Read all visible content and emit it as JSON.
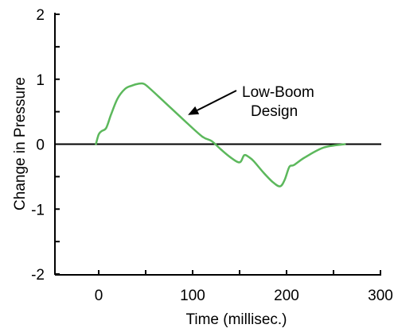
{
  "chart_data": {
    "type": "line",
    "title": "",
    "xlabel": "Time (millisec.)",
    "ylabel": "Change in Pressure",
    "xlim": [
      -50,
      300
    ],
    "ylim": [
      -2,
      2
    ],
    "x_ticks": [
      0,
      100,
      200,
      300
    ],
    "x_minor_ticks": [
      -50,
      50,
      150,
      250
    ],
    "y_ticks": [
      -2,
      -1,
      0,
      1,
      2
    ],
    "y_minor_ticks": [
      -1.5,
      -0.5,
      0.5,
      1.5
    ],
    "zero_line": true,
    "grid": false,
    "annotation": {
      "text_lines": [
        "Low-Boom",
        "Design"
      ],
      "points_to": [
        95,
        0.45
      ]
    },
    "series": [
      {
        "color": "#5cb85c",
        "x": [
          -3,
          0,
          3,
          8,
          13,
          20,
          28,
          35,
          42,
          48,
          55,
          70,
          90,
          110,
          120,
          130,
          140,
          150,
          155,
          160,
          165,
          175,
          185,
          193,
          198,
          203,
          208,
          220,
          240,
          262
        ],
        "y": [
          0.0,
          0.15,
          0.2,
          0.25,
          0.45,
          0.7,
          0.85,
          0.9,
          0.93,
          0.93,
          0.85,
          0.65,
          0.38,
          0.12,
          0.05,
          -0.08,
          -0.2,
          -0.28,
          -0.17,
          -0.2,
          -0.26,
          -0.43,
          -0.58,
          -0.65,
          -0.55,
          -0.35,
          -0.32,
          -0.2,
          -0.05,
          0.0
        ]
      }
    ]
  }
}
